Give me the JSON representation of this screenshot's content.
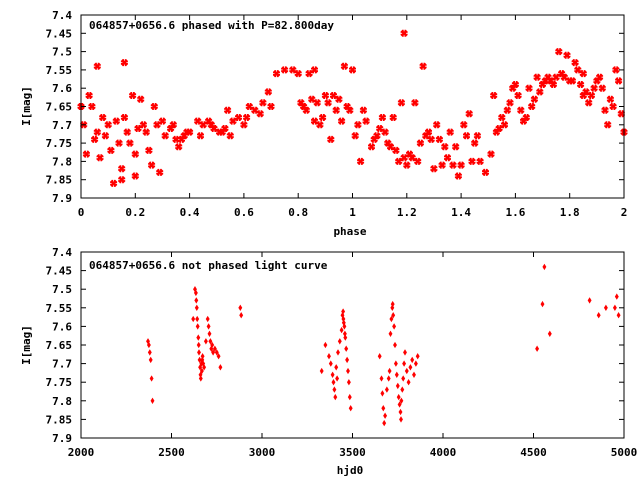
{
  "chart_data": [
    {
      "type": "scatter",
      "title": "064857+0656.6 phased with P=82.800day",
      "xlabel": "phase",
      "ylabel": "I[mag]",
      "xlim": [
        0,
        2
      ],
      "ylim": [
        7.9,
        7.4
      ],
      "y_inverted": true,
      "grid": false,
      "marker": "star",
      "color": "#ff0000",
      "xticks": [
        0,
        0.2,
        0.4,
        0.6,
        0.8,
        1,
        1.2,
        1.4,
        1.6,
        1.8,
        2
      ],
      "xtick_labels": [
        "0",
        "0.2",
        "0.4",
        "0.6",
        "0.8",
        "1",
        "1.2",
        "1.4",
        "1.6",
        "1.8",
        "2"
      ],
      "yticks": [
        7.4,
        7.45,
        7.5,
        7.55,
        7.6,
        7.65,
        7.7,
        7.75,
        7.8,
        7.85,
        7.9
      ],
      "ytick_labels": [
        "7.4",
        "7.45",
        "7.5",
        "7.55",
        "7.6",
        "7.65",
        "7.7",
        "7.75",
        "7.8",
        "7.85",
        "7.9"
      ],
      "points": [
        [
          0.0,
          7.65
        ],
        [
          0.01,
          7.7
        ],
        [
          0.02,
          7.78
        ],
        [
          0.03,
          7.62
        ],
        [
          0.04,
          7.65
        ],
        [
          0.05,
          7.74
        ],
        [
          0.06,
          7.54
        ],
        [
          0.06,
          7.72
        ],
        [
          0.07,
          7.79
        ],
        [
          0.08,
          7.68
        ],
        [
          0.09,
          7.73
        ],
        [
          0.1,
          7.7
        ],
        [
          0.11,
          7.77
        ],
        [
          0.12,
          7.86
        ],
        [
          0.13,
          7.69
        ],
        [
          0.14,
          7.75
        ],
        [
          0.15,
          7.85
        ],
        [
          0.15,
          7.82
        ],
        [
          0.16,
          7.53
        ],
        [
          0.16,
          7.68
        ],
        [
          0.17,
          7.72
        ],
        [
          0.18,
          7.75
        ],
        [
          0.19,
          7.62
        ],
        [
          0.2,
          7.78
        ],
        [
          0.2,
          7.84
        ],
        [
          0.21,
          7.71
        ],
        [
          0.22,
          7.63
        ],
        [
          0.23,
          7.7
        ],
        [
          0.24,
          7.72
        ],
        [
          0.25,
          7.77
        ],
        [
          0.26,
          7.81
        ],
        [
          0.27,
          7.65
        ],
        [
          0.28,
          7.7
        ],
        [
          0.29,
          7.83
        ],
        [
          0.3,
          7.69
        ],
        [
          0.31,
          7.73
        ],
        [
          0.33,
          7.71
        ],
        [
          0.34,
          7.7
        ],
        [
          0.35,
          7.74
        ],
        [
          0.36,
          7.76
        ],
        [
          0.37,
          7.74
        ],
        [
          0.38,
          7.73
        ],
        [
          0.39,
          7.72
        ],
        [
          0.4,
          7.72
        ],
        [
          0.43,
          7.69
        ],
        [
          0.44,
          7.73
        ],
        [
          0.45,
          7.7
        ],
        [
          0.47,
          7.69
        ],
        [
          0.48,
          7.7
        ],
        [
          0.49,
          7.71
        ],
        [
          0.51,
          7.72
        ],
        [
          0.52,
          7.72
        ],
        [
          0.53,
          7.71
        ],
        [
          0.54,
          7.66
        ],
        [
          0.55,
          7.73
        ],
        [
          0.56,
          7.69
        ],
        [
          0.58,
          7.68
        ],
        [
          0.6,
          7.7
        ],
        [
          0.61,
          7.68
        ],
        [
          0.62,
          7.65
        ],
        [
          0.64,
          7.66
        ],
        [
          0.66,
          7.67
        ],
        [
          0.67,
          7.64
        ],
        [
          0.69,
          7.61
        ],
        [
          0.7,
          7.65
        ],
        [
          0.72,
          7.56
        ],
        [
          0.75,
          7.55
        ],
        [
          0.78,
          7.55
        ],
        [
          0.8,
          7.56
        ],
        [
          0.81,
          7.64
        ],
        [
          0.82,
          7.65
        ],
        [
          0.83,
          7.66
        ],
        [
          0.84,
          7.56
        ],
        [
          0.85,
          7.63
        ],
        [
          0.86,
          7.69
        ],
        [
          0.86,
          7.55
        ],
        [
          0.87,
          7.64
        ],
        [
          0.88,
          7.7
        ],
        [
          0.89,
          7.68
        ],
        [
          0.9,
          7.62
        ],
        [
          0.91,
          7.64
        ],
        [
          0.92,
          7.74
        ],
        [
          0.93,
          7.62
        ],
        [
          0.94,
          7.66
        ],
        [
          0.95,
          7.63
        ],
        [
          0.96,
          7.69
        ],
        [
          0.97,
          7.54
        ],
        [
          0.98,
          7.65
        ],
        [
          0.99,
          7.66
        ],
        [
          1.0,
          7.55
        ],
        [
          1.01,
          7.73
        ],
        [
          1.02,
          7.7
        ],
        [
          1.03,
          7.8
        ],
        [
          1.04,
          7.66
        ],
        [
          1.05,
          7.69
        ],
        [
          1.07,
          7.76
        ],
        [
          1.08,
          7.74
        ],
        [
          1.09,
          7.73
        ],
        [
          1.1,
          7.71
        ],
        [
          1.11,
          7.68
        ],
        [
          1.12,
          7.72
        ],
        [
          1.13,
          7.75
        ],
        [
          1.14,
          7.76
        ],
        [
          1.15,
          7.68
        ],
        [
          1.16,
          7.77
        ],
        [
          1.17,
          7.8
        ],
        [
          1.18,
          7.64
        ],
        [
          1.19,
          7.45
        ],
        [
          1.19,
          7.79
        ],
        [
          1.2,
          7.81
        ],
        [
          1.21,
          7.78
        ],
        [
          1.22,
          7.79
        ],
        [
          1.23,
          7.64
        ],
        [
          1.24,
          7.8
        ],
        [
          1.25,
          7.75
        ],
        [
          1.26,
          7.54
        ],
        [
          1.27,
          7.73
        ],
        [
          1.28,
          7.72
        ],
        [
          1.29,
          7.74
        ],
        [
          1.3,
          7.82
        ],
        [
          1.31,
          7.7
        ],
        [
          1.32,
          7.74
        ],
        [
          1.33,
          7.81
        ],
        [
          1.34,
          7.76
        ],
        [
          1.35,
          7.79
        ],
        [
          1.36,
          7.72
        ],
        [
          1.37,
          7.81
        ],
        [
          1.38,
          7.76
        ],
        [
          1.39,
          7.84
        ],
        [
          1.4,
          7.81
        ],
        [
          1.41,
          7.7
        ],
        [
          1.42,
          7.73
        ],
        [
          1.43,
          7.67
        ],
        [
          1.44,
          7.8
        ],
        [
          1.45,
          7.75
        ],
        [
          1.46,
          7.73
        ],
        [
          1.47,
          7.8
        ],
        [
          1.49,
          7.83
        ],
        [
          1.51,
          7.78
        ],
        [
          1.52,
          7.62
        ],
        [
          1.53,
          7.72
        ],
        [
          1.54,
          7.71
        ],
        [
          1.55,
          7.68
        ],
        [
          1.56,
          7.7
        ],
        [
          1.57,
          7.66
        ],
        [
          1.58,
          7.64
        ],
        [
          1.59,
          7.6
        ],
        [
          1.6,
          7.59
        ],
        [
          1.61,
          7.62
        ],
        [
          1.62,
          7.66
        ],
        [
          1.63,
          7.69
        ],
        [
          1.64,
          7.68
        ],
        [
          1.65,
          7.6
        ],
        [
          1.66,
          7.65
        ],
        [
          1.67,
          7.63
        ],
        [
          1.68,
          7.57
        ],
        [
          1.69,
          7.61
        ],
        [
          1.7,
          7.59
        ],
        [
          1.71,
          7.58
        ],
        [
          1.72,
          7.57
        ],
        [
          1.73,
          7.58
        ],
        [
          1.74,
          7.59
        ],
        [
          1.75,
          7.57
        ],
        [
          1.76,
          7.5
        ],
        [
          1.77,
          7.56
        ],
        [
          1.78,
          7.57
        ],
        [
          1.79,
          7.51
        ],
        [
          1.8,
          7.58
        ],
        [
          1.81,
          7.58
        ],
        [
          1.82,
          7.53
        ],
        [
          1.83,
          7.55
        ],
        [
          1.84,
          7.59
        ],
        [
          1.85,
          7.62
        ],
        [
          1.85,
          7.56
        ],
        [
          1.86,
          7.61
        ],
        [
          1.87,
          7.64
        ],
        [
          1.88,
          7.62
        ],
        [
          1.89,
          7.6
        ],
        [
          1.9,
          7.58
        ],
        [
          1.91,
          7.57
        ],
        [
          1.92,
          7.6
        ],
        [
          1.93,
          7.66
        ],
        [
          1.94,
          7.7
        ],
        [
          1.95,
          7.63
        ],
        [
          1.96,
          7.65
        ],
        [
          1.97,
          7.55
        ],
        [
          1.98,
          7.58
        ],
        [
          1.99,
          7.67
        ],
        [
          2.0,
          7.72
        ]
      ]
    },
    {
      "type": "scatter",
      "title": "064857+0656.6 not phased light curve",
      "xlabel": "hjd0",
      "ylabel": "I[mag]",
      "xlim": [
        2000,
        5000
      ],
      "ylim": [
        7.9,
        7.4
      ],
      "y_inverted": true,
      "grid": false,
      "marker": "diamond",
      "color": "#ff0000",
      "xticks": [
        2000,
        2500,
        3000,
        3500,
        4000,
        4500,
        5000
      ],
      "xtick_labels": [
        "2000",
        "2500",
        "3000",
        "3500",
        "4000",
        "4500",
        "5000"
      ],
      "yticks": [
        7.4,
        7.45,
        7.5,
        7.55,
        7.6,
        7.65,
        7.7,
        7.75,
        7.8,
        7.85,
        7.9
      ],
      "ytick_labels": [
        "7.4",
        "7.45",
        "7.5",
        "7.55",
        "7.6",
        "7.65",
        "7.7",
        "7.75",
        "7.8",
        "7.85",
        "7.9"
      ],
      "points": [
        [
          2370,
          7.64
        ],
        [
          2375,
          7.65
        ],
        [
          2380,
          7.67
        ],
        [
          2385,
          7.69
        ],
        [
          2390,
          7.74
        ],
        [
          2395,
          7.8
        ],
        [
          2620,
          7.58
        ],
        [
          2630,
          7.5
        ],
        [
          2635,
          7.51
        ],
        [
          2637,
          7.53
        ],
        [
          2640,
          7.55
        ],
        [
          2642,
          7.58
        ],
        [
          2645,
          7.6
        ],
        [
          2648,
          7.63
        ],
        [
          2650,
          7.65
        ],
        [
          2652,
          7.67
        ],
        [
          2655,
          7.69
        ],
        [
          2658,
          7.71
        ],
        [
          2660,
          7.73
        ],
        [
          2662,
          7.74
        ],
        [
          2665,
          7.7
        ],
        [
          2668,
          7.72
        ],
        [
          2670,
          7.69
        ],
        [
          2672,
          7.68
        ],
        [
          2675,
          7.7
        ],
        [
          2680,
          7.71
        ],
        [
          2690,
          7.64
        ],
        [
          2700,
          7.58
        ],
        [
          2705,
          7.6
        ],
        [
          2710,
          7.62
        ],
        [
          2715,
          7.64
        ],
        [
          2720,
          7.66
        ],
        [
          2725,
          7.65
        ],
        [
          2730,
          7.67
        ],
        [
          2740,
          7.66
        ],
        [
          2750,
          7.67
        ],
        [
          2760,
          7.68
        ],
        [
          2770,
          7.71
        ],
        [
          2880,
          7.55
        ],
        [
          2885,
          7.57
        ],
        [
          3330,
          7.72
        ],
        [
          3350,
          7.65
        ],
        [
          3370,
          7.68
        ],
        [
          3380,
          7.7
        ],
        [
          3390,
          7.73
        ],
        [
          3395,
          7.75
        ],
        [
          3400,
          7.77
        ],
        [
          3405,
          7.79
        ],
        [
          3410,
          7.71
        ],
        [
          3415,
          7.74
        ],
        [
          3420,
          7.67
        ],
        [
          3430,
          7.64
        ],
        [
          3440,
          7.61
        ],
        [
          3445,
          7.57
        ],
        [
          3448,
          7.56
        ],
        [
          3450,
          7.58
        ],
        [
          3452,
          7.59
        ],
        [
          3455,
          7.6
        ],
        [
          3458,
          7.62
        ],
        [
          3460,
          7.63
        ],
        [
          3465,
          7.66
        ],
        [
          3470,
          7.69
        ],
        [
          3475,
          7.72
        ],
        [
          3480,
          7.75
        ],
        [
          3485,
          7.79
        ],
        [
          3490,
          7.82
        ],
        [
          3650,
          7.68
        ],
        [
          3660,
          7.74
        ],
        [
          3665,
          7.78
        ],
        [
          3670,
          7.82
        ],
        [
          3675,
          7.86
        ],
        [
          3680,
          7.84
        ],
        [
          3690,
          7.77
        ],
        [
          3700,
          7.74
        ],
        [
          3705,
          7.72
        ],
        [
          3710,
          7.62
        ],
        [
          3715,
          7.58
        ],
        [
          3720,
          7.55
        ],
        [
          3722,
          7.54
        ],
        [
          3725,
          7.57
        ],
        [
          3730,
          7.6
        ],
        [
          3735,
          7.65
        ],
        [
          3740,
          7.7
        ],
        [
          3745,
          7.73
        ],
        [
          3750,
          7.76
        ],
        [
          3755,
          7.79
        ],
        [
          3760,
          7.81
        ],
        [
          3765,
          7.83
        ],
        [
          3768,
          7.85
        ],
        [
          3770,
          7.8
        ],
        [
          3775,
          7.77
        ],
        [
          3780,
          7.74
        ],
        [
          3785,
          7.7
        ],
        [
          3790,
          7.67
        ],
        [
          3800,
          7.72
        ],
        [
          3810,
          7.75
        ],
        [
          3820,
          7.71
        ],
        [
          3830,
          7.69
        ],
        [
          3840,
          7.73
        ],
        [
          3850,
          7.7
        ],
        [
          3860,
          7.68
        ],
        [
          4520,
          7.66
        ],
        [
          4550,
          7.54
        ],
        [
          4560,
          7.44
        ],
        [
          4590,
          7.62
        ],
        [
          4810,
          7.53
        ],
        [
          4860,
          7.57
        ],
        [
          4900,
          7.55
        ],
        [
          4950,
          7.55
        ],
        [
          4960,
          7.52
        ],
        [
          4970,
          7.57
        ]
      ]
    }
  ]
}
